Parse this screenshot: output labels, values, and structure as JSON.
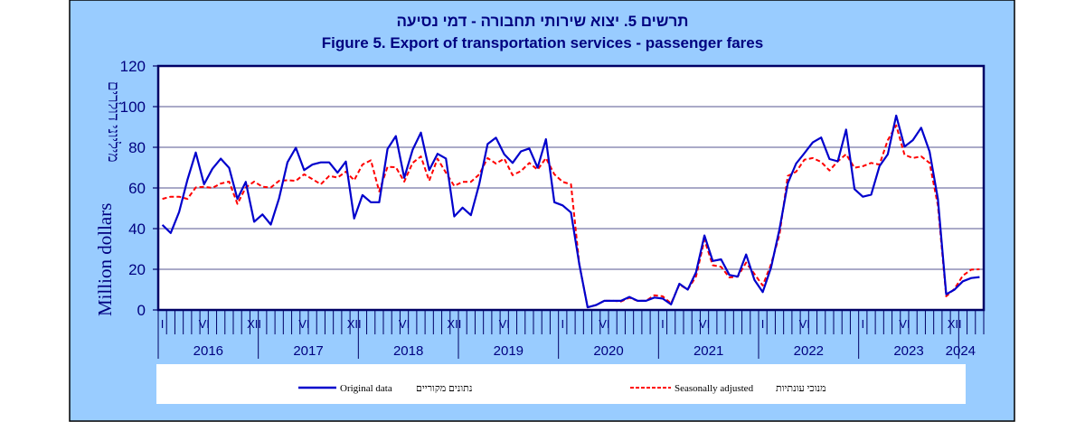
{
  "chart_data": {
    "type": "line",
    "title_hebrew": "תרשים 5. יצוא שירותי תחבורה - דמי נסיעה",
    "title": "Figure 5. Export of transportation services - passenger fares",
    "ylabel": "Million dollars",
    "ylabel_hebrew": "מיליוני דולרים",
    "ylim": [
      0,
      120
    ],
    "yticks": [
      "0",
      "20",
      "40",
      "60",
      "80",
      "100",
      "120"
    ],
    "start": "2016-01",
    "months_count": 99,
    "years": [
      "2016",
      "2017",
      "2018",
      "2019",
      "2020",
      "2021",
      "2022",
      "2023",
      "2024"
    ],
    "month_labels": [
      {
        "index": 0,
        "label": "I"
      },
      {
        "index": 5,
        "label": "VI"
      },
      {
        "index": 11,
        "label": "XII"
      },
      {
        "index": 17,
        "label": "VI"
      },
      {
        "index": 23,
        "label": "XII"
      },
      {
        "index": 29,
        "label": "VI"
      },
      {
        "index": 35,
        "label": "XII"
      },
      {
        "index": 41,
        "label": "VI"
      },
      {
        "index": 48,
        "label": "I"
      },
      {
        "index": 53,
        "label": "VI"
      },
      {
        "index": 60,
        "label": "I"
      },
      {
        "index": 65,
        "label": "VI"
      },
      {
        "index": 72,
        "label": "I"
      },
      {
        "index": 77,
        "label": "VI"
      },
      {
        "index": 84,
        "label": "I"
      },
      {
        "index": 89,
        "label": "VI"
      },
      {
        "index": 95,
        "label": "XII"
      }
    ],
    "grid": true,
    "legend_position": "bottom",
    "series": [
      {
        "name": "Original data",
        "name_hebrew": "נתונים מקוריים",
        "color": "#0000cc",
        "style": "solid",
        "values": [
          41.8,
          37.8,
          48.2,
          64,
          77.4,
          61.8,
          69.4,
          74.4,
          69.9,
          54.6,
          63,
          43.4,
          47,
          42,
          55,
          72.6,
          79.8,
          68.8,
          71.5,
          72.6,
          72.6,
          67.5,
          73,
          45,
          56.5,
          53,
          53,
          79.2,
          85.5,
          65,
          78.7,
          87.2,
          68.8,
          76.8,
          74.5,
          46,
          50.3,
          46.6,
          62,
          81.6,
          84.7,
          76.6,
          72.3,
          78,
          79.4,
          70,
          84,
          53,
          51.4,
          47.9,
          22.5,
          1.3,
          2.4,
          4.5,
          4.5,
          4.5,
          6.4,
          4.5,
          4.5,
          6.1,
          5.6,
          2.7,
          12.9,
          10,
          18.5,
          36.6,
          24.1,
          24.9,
          17.2,
          16.4,
          27.3,
          14.8,
          8.8,
          20.9,
          39.7,
          62.3,
          72,
          77.1,
          82.4,
          84.8,
          74.2,
          73.1,
          88.7,
          59.4,
          55.7,
          56.7,
          70.7,
          76.6,
          95.6,
          80.3,
          83.5,
          89.6,
          77.9,
          54.6,
          7.7,
          10,
          14.1,
          15.7,
          16.2
        ]
      },
      {
        "name": "Seasonally adjusted",
        "name_hebrew": "מנוכי עונתיות",
        "color": "#ff0000",
        "style": "dashed",
        "values": [
          54.6,
          55.7,
          55.7,
          54.6,
          60.2,
          60.6,
          60,
          62.2,
          63.1,
          52.2,
          60.2,
          63.1,
          60.6,
          60.2,
          63.5,
          63.8,
          63.5,
          66.7,
          64.3,
          61.8,
          65.9,
          65.1,
          68,
          63.8,
          71.5,
          73.6,
          58.3,
          70.4,
          70.2,
          63.1,
          72.3,
          75.5,
          63.5,
          74.4,
          67.5,
          61,
          63,
          63,
          66.7,
          74.7,
          72,
          74.4,
          66.3,
          68.3,
          72.3,
          69,
          74.7,
          66.7,
          63,
          61.8,
          22.5,
          1.3,
          2.4,
          4.5,
          4.5,
          4.2,
          6,
          4.5,
          4.5,
          7.2,
          6.7,
          3.2,
          12.5,
          10,
          16.5,
          34.5,
          22,
          21.2,
          16,
          16.4,
          23.3,
          17.7,
          12,
          22.5,
          37,
          65.9,
          68,
          73.9,
          74.7,
          72.8,
          68.6,
          73.1,
          76.6,
          69.9,
          70.7,
          72.3,
          71.5,
          83.5,
          90.8,
          76.3,
          74.7,
          75.5,
          72.3,
          51.4,
          6.7,
          10.4,
          16.9,
          19.8,
          20
        ]
      }
    ]
  }
}
